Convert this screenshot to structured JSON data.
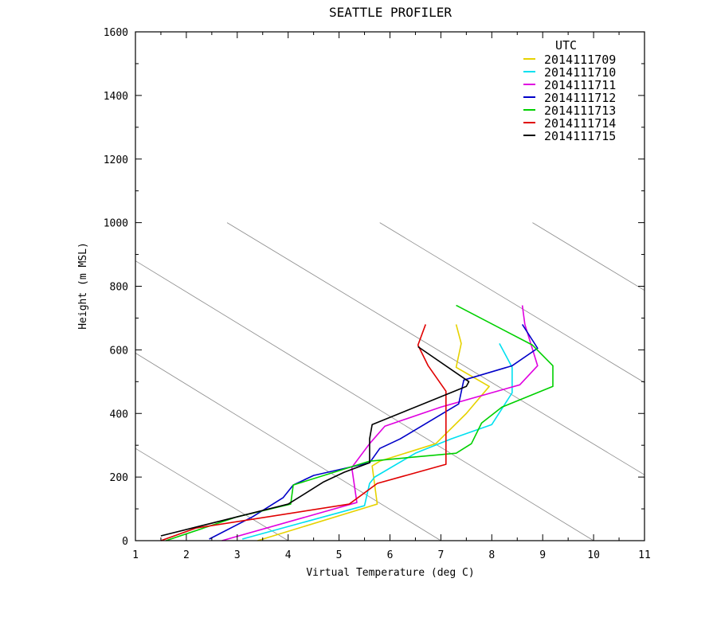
{
  "chart_data": {
    "type": "line",
    "title": "SEATTLE PROFILER",
    "xlabel": "Virtual Temperature (deg C)",
    "ylabel": "Height (m MSL)",
    "xlim": [
      1,
      11
    ],
    "ylim": [
      0,
      1600
    ],
    "x_ticks": [
      "1",
      "2",
      "3",
      "4",
      "5",
      "6",
      "7",
      "8",
      "9",
      "10",
      "11"
    ],
    "y_ticks": [
      "0",
      "200",
      "400",
      "600",
      "800",
      "1000",
      "1200",
      "1400",
      "1600"
    ],
    "legend_title": "UTC",
    "legend_position": "top-right",
    "grid": false,
    "reference_lines": [
      [
        [
          1,
          290
        ],
        [
          4,
          0
        ]
      ],
      [
        [
          1,
          590
        ],
        [
          7,
          0
        ]
      ],
      [
        [
          1,
          880
        ],
        [
          10,
          0
        ]
      ],
      [
        [
          2.8,
          1000
        ],
        [
          11,
          207
        ]
      ],
      [
        [
          5.8,
          1000
        ],
        [
          11,
          497
        ]
      ],
      [
        [
          8.8,
          1000
        ],
        [
          11,
          787
        ]
      ]
    ],
    "series": [
      {
        "name": "2014111709",
        "color": "#e6d200",
        "points": [
          [
            3.4,
            0
          ],
          [
            5.75,
            115
          ],
          [
            5.65,
            235
          ],
          [
            5.8,
            250
          ],
          [
            6.9,
            305
          ],
          [
            7.5,
            400
          ],
          [
            7.95,
            485
          ],
          [
            7.3,
            545
          ],
          [
            7.4,
            620
          ],
          [
            7.3,
            680
          ]
        ]
      },
      {
        "name": "2014111710",
        "color": "#00e0f0",
        "points": [
          [
            3.1,
            5
          ],
          [
            5.5,
            110
          ],
          [
            5.6,
            180
          ],
          [
            5.7,
            200
          ],
          [
            6.5,
            275
          ],
          [
            7.2,
            320
          ],
          [
            8.0,
            365
          ],
          [
            8.4,
            465
          ],
          [
            8.4,
            545
          ],
          [
            8.15,
            620
          ]
        ]
      },
      {
        "name": "2014111711",
        "color": "#e000e0",
        "points": [
          [
            2.7,
            0
          ],
          [
            5.35,
            120
          ],
          [
            5.25,
            230
          ],
          [
            5.6,
            305
          ],
          [
            5.9,
            360
          ],
          [
            7.0,
            420
          ],
          [
            8.55,
            490
          ],
          [
            8.9,
            550
          ],
          [
            8.65,
            680
          ],
          [
            8.6,
            740
          ]
        ]
      },
      {
        "name": "2014111712",
        "color": "#0000c8",
        "points": [
          [
            2.45,
            5
          ],
          [
            3.3,
            75
          ],
          [
            3.9,
            135
          ],
          [
            4.1,
            175
          ],
          [
            4.5,
            205
          ],
          [
            5.6,
            245
          ],
          [
            5.8,
            290
          ],
          [
            6.2,
            320
          ],
          [
            7.35,
            430
          ],
          [
            7.45,
            505
          ],
          [
            8.4,
            550
          ],
          [
            8.9,
            605
          ],
          [
            8.6,
            680
          ]
        ]
      },
      {
        "name": "2014111713",
        "color": "#00d000",
        "points": [
          [
            1.6,
            0
          ],
          [
            3.0,
            75
          ],
          [
            4.05,
            115
          ],
          [
            4.1,
            175
          ],
          [
            4.2,
            180
          ],
          [
            5.6,
            250
          ],
          [
            7.3,
            275
          ],
          [
            7.6,
            305
          ],
          [
            7.8,
            370
          ],
          [
            8.2,
            420
          ],
          [
            9.2,
            485
          ],
          [
            9.2,
            550
          ],
          [
            8.8,
            615
          ],
          [
            7.3,
            740
          ]
        ]
      },
      {
        "name": "2014111714",
        "color": "#e00000",
        "points": [
          [
            1.5,
            0
          ],
          [
            2.2,
            40
          ],
          [
            5.2,
            115
          ],
          [
            5.75,
            180
          ],
          [
            7.1,
            240
          ],
          [
            7.1,
            470
          ],
          [
            6.75,
            550
          ],
          [
            6.55,
            615
          ],
          [
            6.7,
            680
          ]
        ]
      },
      {
        "name": "2014111715",
        "color": "#000000",
        "points": [
          [
            1.5,
            15
          ],
          [
            4.0,
            115
          ],
          [
            4.7,
            185
          ],
          [
            5.1,
            215
          ],
          [
            5.6,
            245
          ],
          [
            5.6,
            320
          ],
          [
            5.65,
            365
          ],
          [
            7.5,
            485
          ],
          [
            7.55,
            500
          ],
          [
            6.55,
            610
          ]
        ]
      }
    ]
  }
}
